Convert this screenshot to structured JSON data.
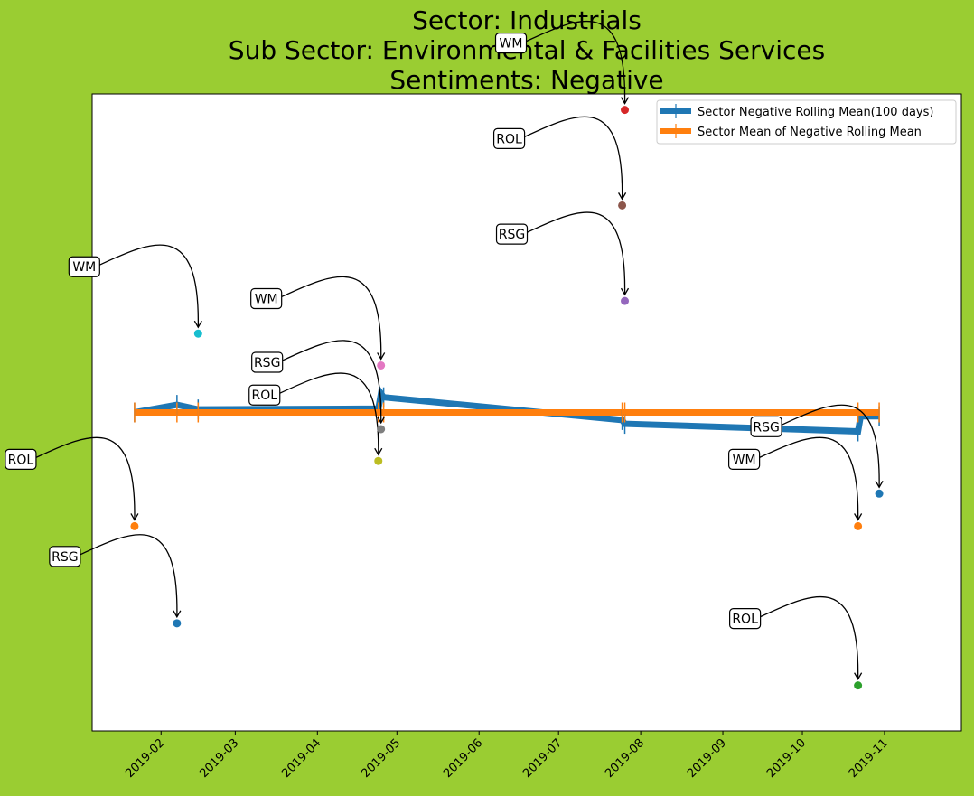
{
  "colors": {
    "background": "#9acd32",
    "plot_bg": "#ffffff",
    "series_rolling": "#1f77b4",
    "series_mean": "#ff7f0e"
  },
  "chart_data": {
    "type": "line",
    "title": [
      "Sector:  Industrials",
      "Sub Sector:  Environmental & Facilities Services",
      "Sentiments:  Negative"
    ],
    "x_ticks": [
      "2019-02",
      "2019-03",
      "2019-04",
      "2019-05",
      "2019-06",
      "2019-07",
      "2019-08",
      "2019-09",
      "2019-10",
      "2019-11"
    ],
    "xlim": [
      "2019-01-06",
      "2019-11-30"
    ],
    "ylim": [
      -0.42,
      0.42
    ],
    "y_ticks_visible": false,
    "legend": {
      "location": "top-right",
      "entries": [
        "Sector Negative Rolling Mean(100 days)",
        "Sector Mean of Negative Rolling Mean"
      ]
    },
    "series": [
      {
        "name": "Sector Negative Rolling Mean(100 days)",
        "color": "#1f77b4",
        "points": [
          {
            "x": "2019-01-22",
            "y": 0.0
          },
          {
            "x": "2019-02-07",
            "y": 0.01
          },
          {
            "x": "2019-02-15",
            "y": 0.004
          },
          {
            "x": "2019-04-24",
            "y": 0.005
          },
          {
            "x": "2019-04-25",
            "y": 0.025
          },
          {
            "x": "2019-04-26",
            "y": 0.02
          },
          {
            "x": "2019-07-25",
            "y": -0.01
          },
          {
            "x": "2019-07-26",
            "y": -0.015
          },
          {
            "x": "2019-10-22",
            "y": -0.025
          },
          {
            "x": "2019-10-23",
            "y": -0.005
          },
          {
            "x": "2019-10-30",
            "y": -0.005
          }
        ],
        "error_bar_x": [
          "2019-01-22",
          "2019-02-07",
          "2019-02-15",
          "2019-04-24",
          "2019-04-26",
          "2019-07-25",
          "2019-07-26",
          "2019-10-22",
          "2019-10-30"
        ]
      },
      {
        "name": "Sector Mean of Negative Rolling Mean",
        "color": "#ff7f0e",
        "points": [
          {
            "x": "2019-01-22",
            "y": 0.0
          },
          {
            "x": "2019-10-30",
            "y": 0.0
          }
        ],
        "error_bar_x": [
          "2019-01-22",
          "2019-02-07",
          "2019-02-15",
          "2019-04-24",
          "2019-04-26",
          "2019-07-25",
          "2019-07-26",
          "2019-10-22",
          "2019-10-30"
        ]
      }
    ],
    "annotations": [
      {
        "label": "ROL",
        "x": "2019-01-22",
        "y": -0.15,
        "color": "#ff7f0e"
      },
      {
        "label": "RSG",
        "x": "2019-02-07",
        "y": -0.278,
        "color": "#1f77b4"
      },
      {
        "label": "WM",
        "x": "2019-02-15",
        "y": 0.104,
        "color": "#17becf"
      },
      {
        "label": "ROL",
        "x": "2019-04-24",
        "y": -0.064,
        "color": "#bcbd22"
      },
      {
        "label": "RSG",
        "x": "2019-04-25",
        "y": -0.022,
        "color": "#7f7f7f"
      },
      {
        "label": "WM",
        "x": "2019-04-25",
        "y": 0.062,
        "color": "#e377c2"
      },
      {
        "label": "WM",
        "x": "2019-07-26",
        "y": 0.399,
        "color": "#d62728"
      },
      {
        "label": "ROL",
        "x": "2019-07-25",
        "y": 0.273,
        "color": "#8c564b"
      },
      {
        "label": "RSG",
        "x": "2019-07-26",
        "y": 0.147,
        "color": "#9467bd"
      },
      {
        "label": "RSG",
        "x": "2019-10-30",
        "y": -0.107,
        "color": "#1f77b4"
      },
      {
        "label": "WM",
        "x": "2019-10-22",
        "y": -0.15,
        "color": "#ff7f0e"
      },
      {
        "label": "ROL",
        "x": "2019-10-22",
        "y": -0.36,
        "color": "#2ca02c"
      }
    ]
  }
}
